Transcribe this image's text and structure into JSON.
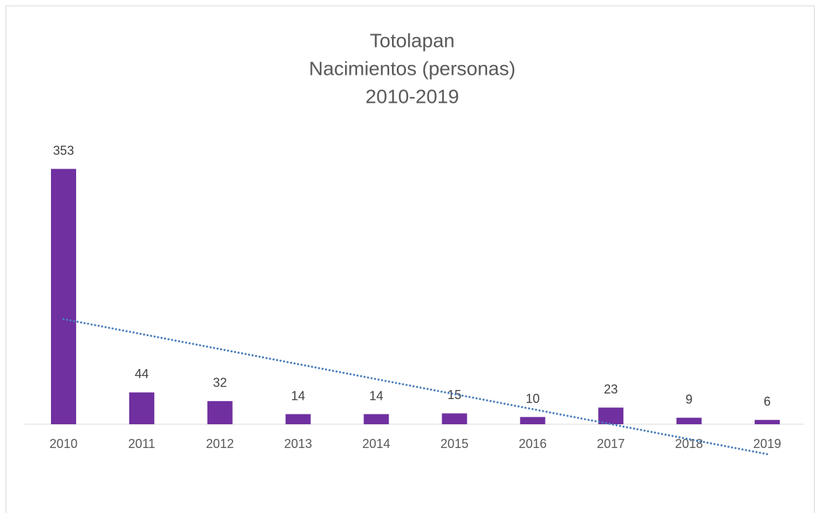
{
  "chart_data": {
    "type": "bar",
    "title": [
      "Totolapan",
      "Nacimientos (personas)",
      "2010-2019"
    ],
    "categories": [
      "2010",
      "2011",
      "2012",
      "2013",
      "2014",
      "2015",
      "2016",
      "2017",
      "2018",
      "2019"
    ],
    "values": [
      353,
      44,
      32,
      14,
      14,
      15,
      10,
      23,
      9,
      6
    ],
    "color": "#7030a0",
    "ylim": [
      0,
      400
    ],
    "data_labels": true,
    "trendline": {
      "type": "linear",
      "color": "#4a7ebb"
    }
  }
}
